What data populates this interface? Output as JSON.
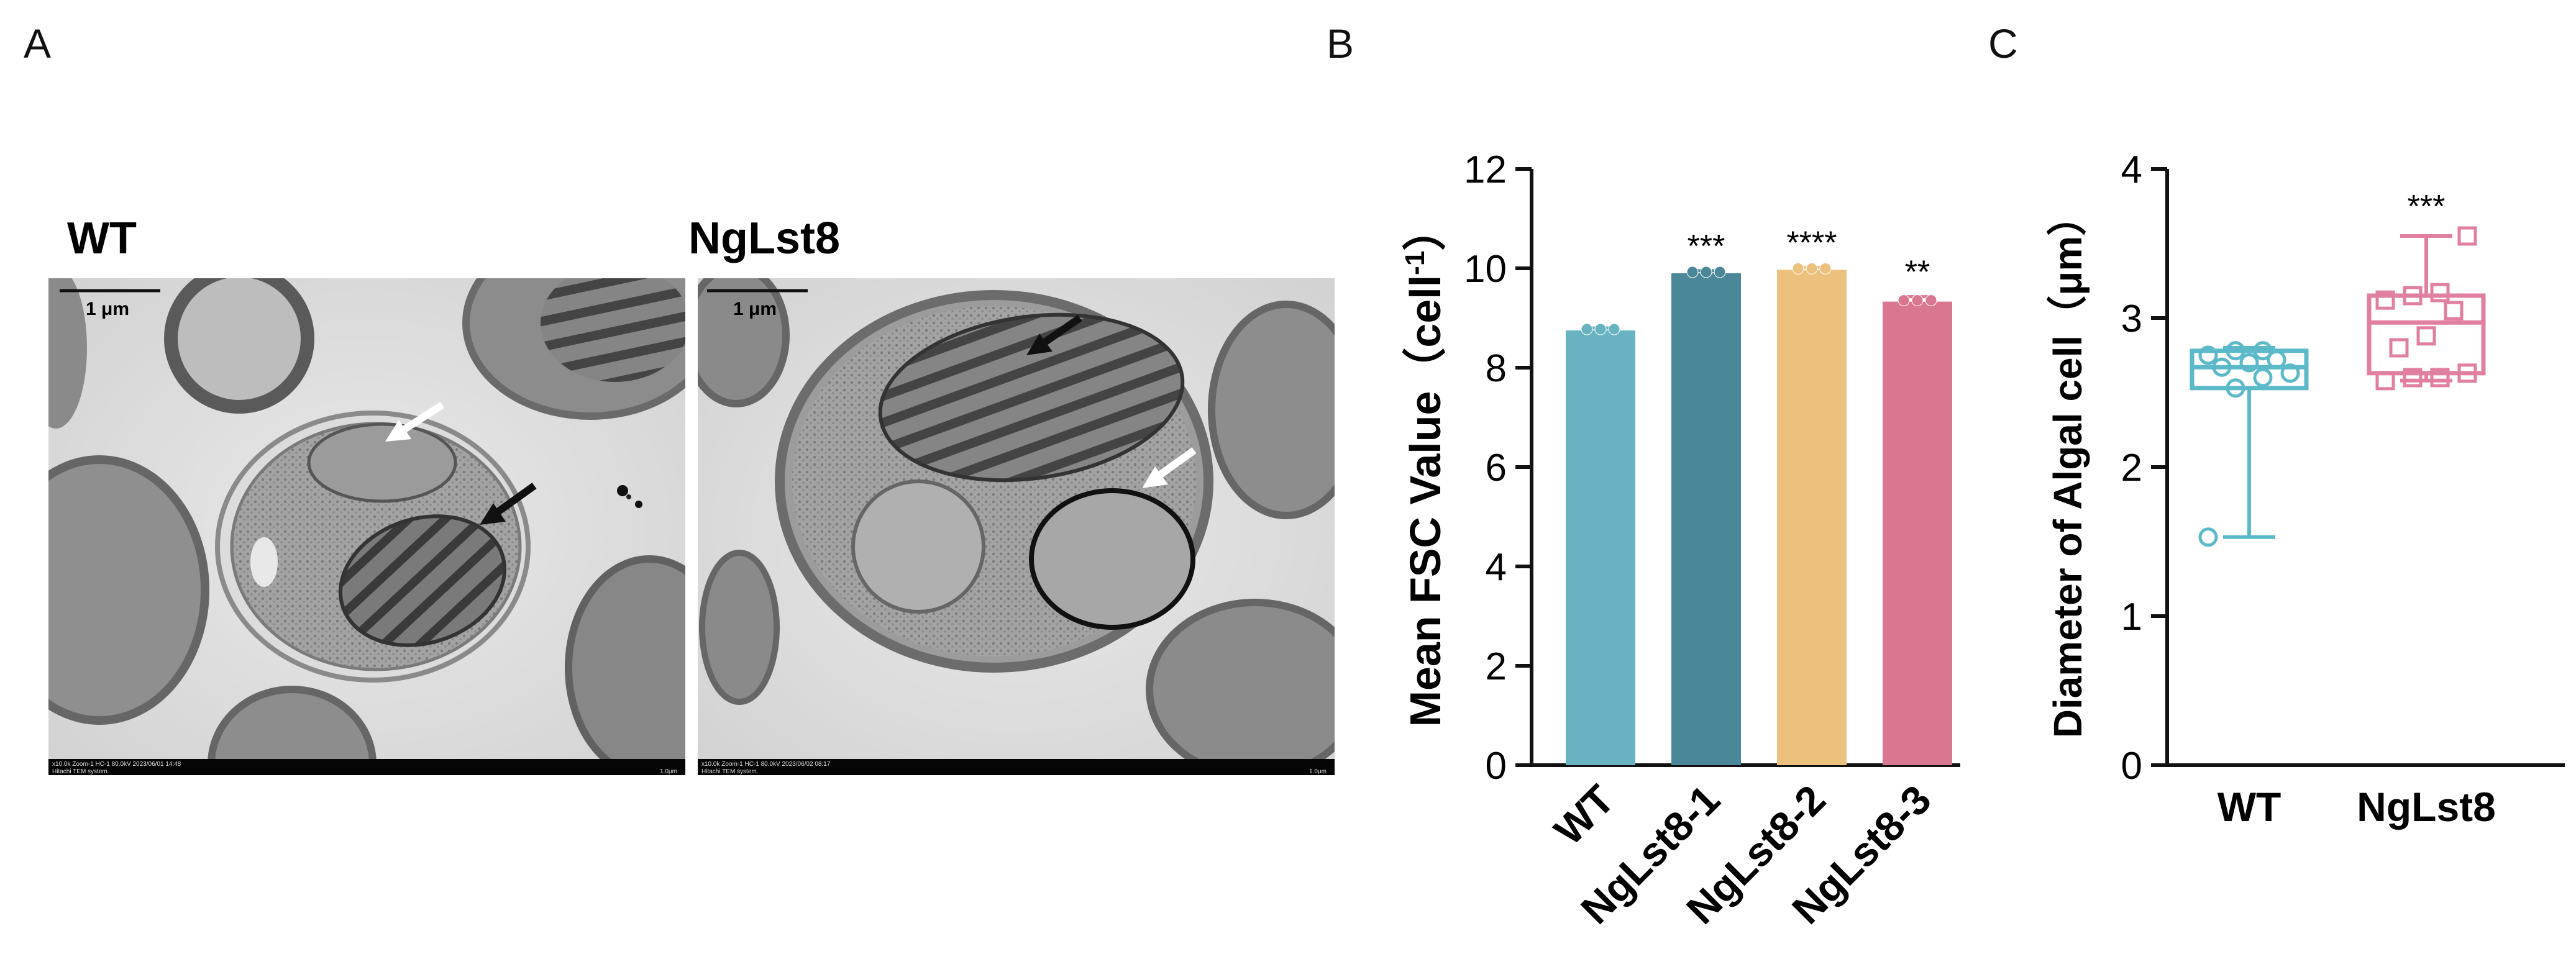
{
  "panels": {
    "a": {
      "letter": "A",
      "conditions": [
        "WT",
        "NgLst8"
      ],
      "scale_bar": "1 μm",
      "tem_footer_left": [
        "x10.0k Zoom-1 HC-1 80.0kV 2023/06/01 14:48",
        "x10.0k Zoom-1 HC-1 80.0kV 2023/06/02 08:17"
      ],
      "tem_footer_system": "Hitachi TEM system.",
      "tem_footer_right": "1.0μm",
      "arrow_colors": {
        "oil_body": "#ffffff",
        "chloroplast": "#111111"
      }
    },
    "b": {
      "letter": "B"
    },
    "c": {
      "letter": "C"
    }
  },
  "chart_data": [
    {
      "type": "bar",
      "panel": "B",
      "ylabel": "Mean FSC Value（cell",
      "ylabel_sup": "-1",
      "ylabel_close": "）",
      "categories": [
        "WT",
        "NgLst8-1",
        "NgLst8-2",
        "NgLst8-3"
      ],
      "values": [
        8.75,
        9.9,
        9.97,
        9.33
      ],
      "errors": [
        0.05,
        0.05,
        0.05,
        0.1
      ],
      "significance": [
        "",
        "***",
        "****",
        "**"
      ],
      "colors": [
        "#68b3c2",
        "#4a8899",
        "#ecc07d",
        "#d97790"
      ],
      "ylim": [
        0,
        12
      ],
      "yticks": [
        0,
        2,
        4,
        6,
        8,
        10,
        12
      ],
      "grid": false
    },
    {
      "type": "box",
      "panel": "C",
      "ylabel": "Diameter of Algal cell（μm）",
      "categories": [
        "WT",
        "NgLst8"
      ],
      "colors": [
        "#5bb9c9",
        "#e07fa0"
      ],
      "markers": [
        "circle",
        "square"
      ],
      "ylim": [
        0,
        4
      ],
      "yticks": [
        0,
        1,
        2,
        3,
        4
      ],
      "significance": [
        "",
        "***"
      ],
      "boxes": [
        {
          "min": 1.53,
          "q1": 2.53,
          "median": 2.67,
          "q3": 2.78,
          "max": 2.8
        },
        {
          "min": 2.58,
          "q1": 2.63,
          "median": 2.97,
          "q3": 3.15,
          "max": 3.55
        }
      ],
      "points": [
        [
          1.53,
          2.53,
          2.6,
          2.63,
          2.67,
          2.7,
          2.72,
          2.75,
          2.78,
          2.78
        ],
        [
          2.58,
          2.6,
          2.6,
          2.63,
          2.8,
          2.88,
          3.05,
          3.12,
          3.15,
          3.17,
          3.55
        ]
      ],
      "grid": false
    }
  ]
}
